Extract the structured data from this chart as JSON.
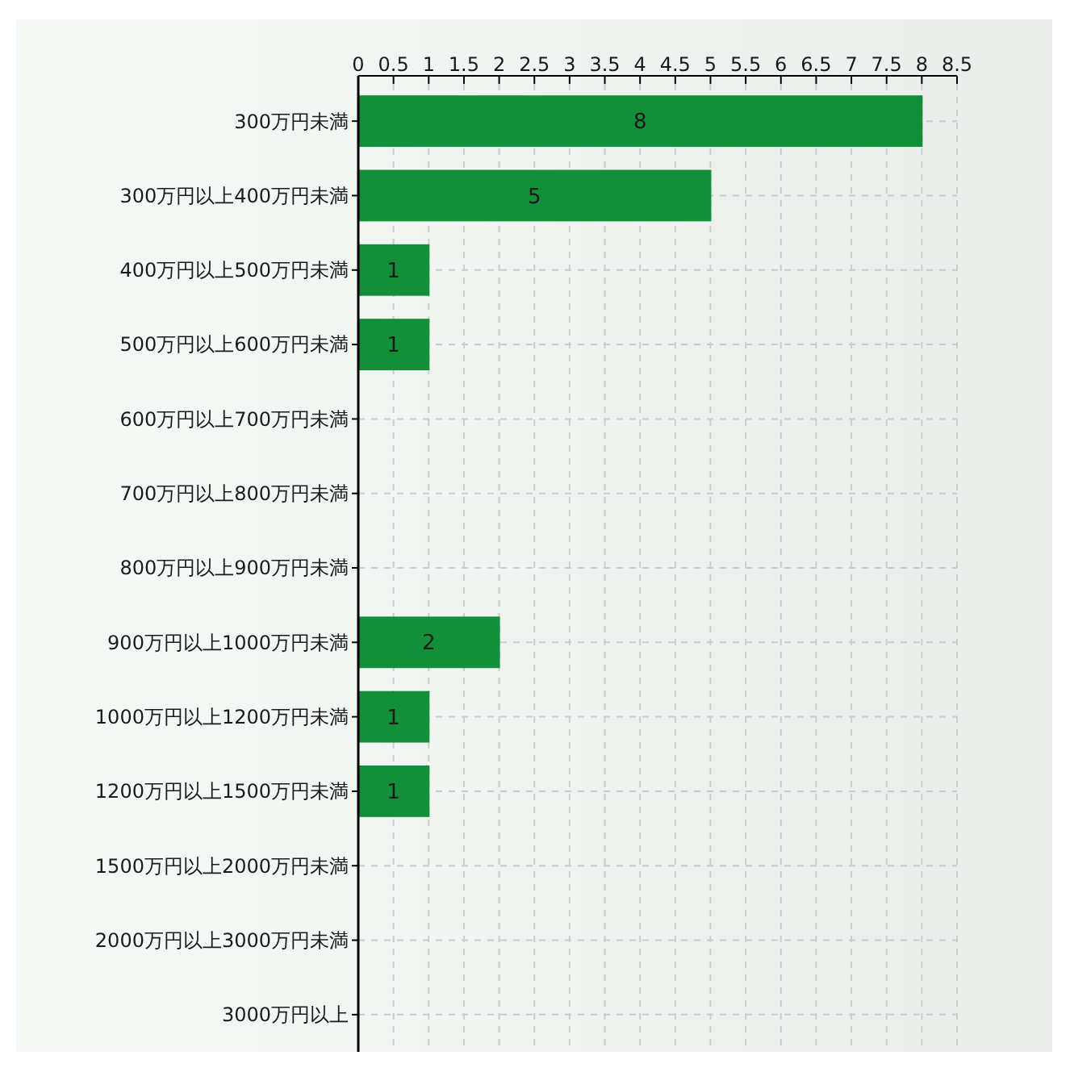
{
  "chart_data": {
    "type": "bar",
    "orientation": "horizontal",
    "categories": [
      "300万円未満",
      "300万円以上400万円未満",
      "400万円以上500万円未満",
      "500万円以上600万円未満",
      "600万円以上700万円未満",
      "700万円以上800万円未満",
      "800万円以上900万円未満",
      "900万円以上1000万円未満",
      "1000万円以上1200万円未満",
      "1200万円以上1500万円未満",
      "1500万円以上2000万円未満",
      "2000万円以上3000万円未満",
      "3000万円以上"
    ],
    "values": [
      8,
      5,
      1,
      1,
      0,
      0,
      0,
      2,
      1,
      1,
      0,
      0,
      0
    ],
    "value_labels": [
      "8",
      "5",
      "1",
      "1",
      null,
      null,
      null,
      "2",
      "1",
      "1",
      null,
      null,
      null
    ],
    "color": "#138f3a",
    "xlim": [
      0,
      8.5
    ],
    "xticks": [
      0,
      0.5,
      1,
      1.5,
      2,
      2.5,
      3,
      3.5,
      4,
      4.5,
      5,
      5.5,
      6,
      6.5,
      7,
      7.5,
      8,
      8.5
    ],
    "grid": true
  }
}
